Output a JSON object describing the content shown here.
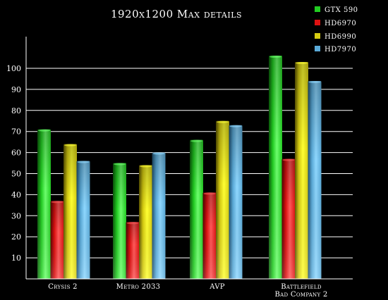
{
  "chart_data": {
    "type": "bar",
    "title": "1920x1200 Max details",
    "xlabel": "",
    "ylabel": "",
    "ylim": [
      0,
      115
    ],
    "yticks": [
      10,
      20,
      30,
      40,
      50,
      60,
      70,
      80,
      90,
      100
    ],
    "grid": true,
    "legend_position": "top-right",
    "categories": [
      [
        "Crysis 2"
      ],
      [
        "Metro 2033"
      ],
      [
        "AVP"
      ],
      [
        "Battlefield",
        "Bad Company 2"
      ]
    ],
    "series": [
      {
        "name": "GTX 590",
        "values": [
          71,
          55,
          66,
          106
        ],
        "color": "#22cc22",
        "dark": "#0a5a0a",
        "light": "#6dff6d"
      },
      {
        "name": "HD6970",
        "values": [
          37,
          27,
          41,
          57
        ],
        "color": "#dd1111",
        "dark": "#5a0303",
        "light": "#ff5a5a"
      },
      {
        "name": "HD6990",
        "values": [
          64,
          54,
          75,
          103
        ],
        "color": "#d6cc11",
        "dark": "#5c5400",
        "light": "#ffff33"
      },
      {
        "name": "HD7970",
        "values": [
          56,
          60,
          73,
          94
        ],
        "color": "#5aaad8",
        "dark": "#1f4f6e",
        "light": "#8fd8ff"
      }
    ]
  }
}
